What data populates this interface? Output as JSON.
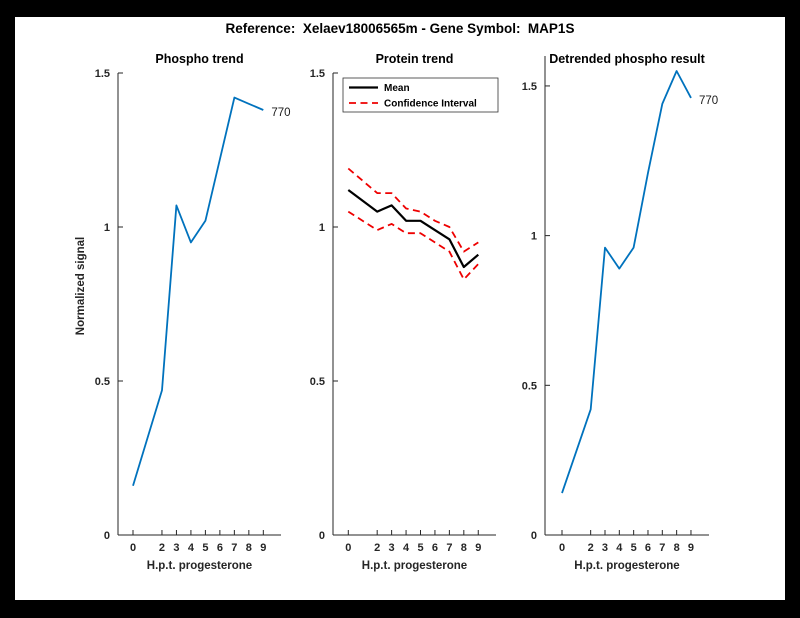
{
  "figure": {
    "suptitle": "Reference:  Xelaev18006565m - Gene Symbol:  MAP1S",
    "page_bg": "#000000",
    "figure_bg": "#ffffff",
    "axis_color": "#262626",
    "accent_blue": "#0072BD",
    "accent_red": "#EE0000"
  },
  "chart_data": [
    {
      "type": "line",
      "title": "Phospho trend",
      "xlabel": "H.p.t. progesterone",
      "ylabel": "Normalized signal",
      "x": [
        0,
        2,
        3,
        4,
        5,
        6,
        7,
        8,
        9
      ],
      "ylim": [
        0,
        1.5
      ],
      "yticks": [
        0,
        0.5,
        1,
        1.5
      ],
      "grid": false,
      "legend": null,
      "end_label": "770",
      "series": [
        {
          "name": "phospho-signal",
          "color": "#0072BD",
          "style": "solid",
          "width": 1.8,
          "values": [
            0.16,
            0.47,
            1.07,
            0.95,
            1.02,
            1.22,
            1.42,
            1.4,
            1.38
          ]
        }
      ]
    },
    {
      "type": "line",
      "title": "Protein trend",
      "xlabel": "H.p.t. progesterone",
      "ylabel": "",
      "x": [
        0,
        2,
        3,
        4,
        5,
        6,
        7,
        8,
        9
      ],
      "ylim": [
        0,
        1.5
      ],
      "yticks": [
        0,
        0.5,
        1,
        1.5
      ],
      "grid": false,
      "legend": {
        "position": "top-left-inside",
        "entries": [
          "Mean",
          "Confidence Interval"
        ]
      },
      "end_label": null,
      "series": [
        {
          "name": "mean",
          "label": "Mean",
          "color": "#000000",
          "style": "solid",
          "width": 2.2,
          "values": [
            1.12,
            1.05,
            1.07,
            1.02,
            1.02,
            0.99,
            0.96,
            0.87,
            0.91
          ]
        },
        {
          "name": "ci-upper",
          "label": "Confidence Interval",
          "color": "#EE0000",
          "style": "dashed",
          "width": 1.8,
          "values": [
            1.19,
            1.11,
            1.11,
            1.06,
            1.05,
            1.02,
            1.0,
            0.92,
            0.95
          ]
        },
        {
          "name": "ci-lower",
          "label": "Confidence Interval",
          "color": "#EE0000",
          "style": "dashed",
          "width": 1.8,
          "values": [
            1.05,
            0.99,
            1.01,
            0.98,
            0.98,
            0.95,
            0.92,
            0.83,
            0.88
          ]
        }
      ]
    },
    {
      "type": "line",
      "title": "Detrended phospho result",
      "xlabel": "H.p.t. progesterone",
      "ylabel": "",
      "x": [
        0,
        2,
        3,
        4,
        5,
        6,
        7,
        8,
        9
      ],
      "ylim": [
        0,
        1.6
      ],
      "yticks": [
        0,
        0.5,
        1,
        1.5
      ],
      "grid": false,
      "legend": null,
      "end_label": "770",
      "series": [
        {
          "name": "detrended-phospho",
          "color": "#0072BD",
          "style": "solid",
          "width": 1.8,
          "values": [
            0.14,
            0.42,
            0.96,
            0.89,
            0.96,
            1.21,
            1.44,
            1.55,
            1.46
          ]
        }
      ]
    }
  ]
}
